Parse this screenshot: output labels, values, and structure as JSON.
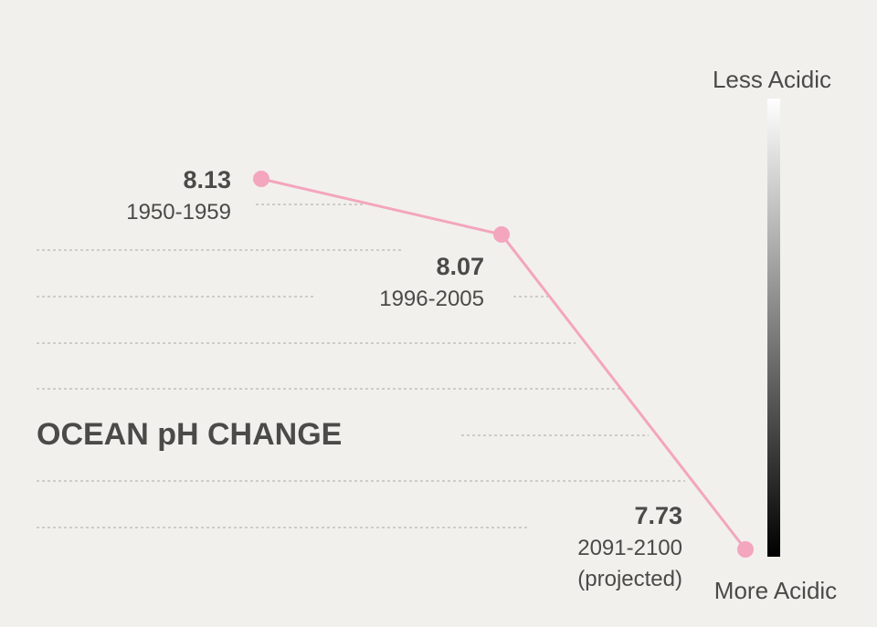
{
  "chart_data": {
    "type": "line",
    "title": "OCEAN pH CHANGE",
    "series": [
      {
        "color": "#f3a6bd",
        "points": [
          {
            "value": 8.13,
            "value_label": "8.13",
            "period": "1950-1959",
            "note": ""
          },
          {
            "value": 8.07,
            "value_label": "8.07",
            "period": "1996-2005",
            "note": ""
          },
          {
            "value": 7.73,
            "value_label": "7.73",
            "period": "2091-2100",
            "note": "(projected)"
          }
        ]
      }
    ],
    "scale_bar": {
      "top_label": "Less Acidic",
      "bottom_label": "More Acidic",
      "gradient_top_color": "#ffffff",
      "gradient_bottom_color": "#000000"
    },
    "grid": true,
    "grid_style": "dotted"
  },
  "colors": {
    "background": "#f2f0ec",
    "text": "#4a4a48",
    "line": "#f3a6bd",
    "grid": "#b9b6b0"
  }
}
